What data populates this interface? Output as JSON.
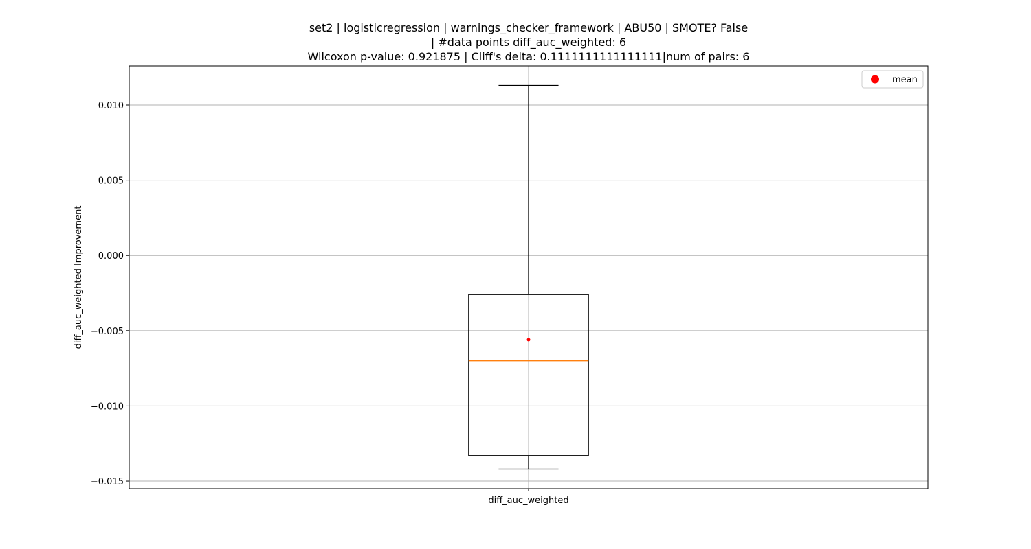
{
  "chart_data": {
    "type": "box",
    "title_lines": [
      "set2 | logisticregression | warnings_checker_framework | ABU50 | SMOTE? False",
      "| #data points diff_auc_weighted: 6",
      "Wilcoxon p-value: 0.921875 | Cliff's delta: 0.1111111111111111|num of pairs: 6"
    ],
    "ylabel": "diff_auc_weighted Improvement",
    "categories": [
      "diff_auc_weighted"
    ],
    "ylim": [
      -0.0155,
      0.0126
    ],
    "yticks": [
      0.01,
      0.005,
      0.0,
      -0.005,
      -0.01,
      -0.015
    ],
    "ytick_labels": [
      "0.010",
      "0.005",
      "0.000",
      "−0.005",
      "−0.010",
      "−0.015"
    ],
    "grid": true,
    "legend": {
      "placement": "top-right",
      "entries": [
        {
          "label": "mean",
          "color": "#ff0000",
          "marker": "circle"
        }
      ]
    },
    "boxes": [
      {
        "category": "diff_auc_weighted",
        "whisker_low": -0.0142,
        "q1": -0.0133,
        "median": -0.007,
        "q3": -0.0026,
        "whisker_high": 0.0113,
        "mean": -0.0056
      }
    ],
    "colors": {
      "box": "#000000",
      "median": "#ff7f0e",
      "mean": "#ff0000",
      "grid": "#b0b0b0"
    }
  }
}
